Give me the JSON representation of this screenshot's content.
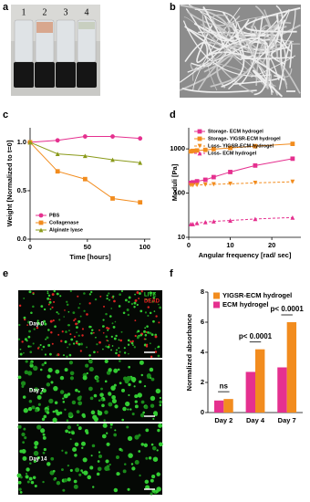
{
  "panel_labels": [
    "a",
    "b",
    "c",
    "d",
    "e",
    "f"
  ],
  "panel_a": {
    "tube_labels": [
      "1",
      "2",
      "3",
      "4"
    ]
  },
  "panel_e": {
    "legend": [
      "LIVE",
      "DEAD"
    ],
    "rows": [
      "Day 0",
      "Day 7",
      "Day 14"
    ]
  },
  "chart_data": [
    {
      "type": "line",
      "x_label": "Time [hours]",
      "y_label": "Weight [Normalized to t=0]",
      "x": [
        0,
        24,
        48,
        72,
        96
      ],
      "xlim": [
        0,
        105
      ],
      "xticks": [
        0,
        50,
        100
      ],
      "ylim": [
        0,
        1.15
      ],
      "yticks": [
        {
          "value": 0,
          "label": "0.0"
        },
        0.5,
        {
          "value": 1,
          "label": "1.0"
        }
      ],
      "legend": "lower left",
      "series": [
        {
          "name": "PBS",
          "color": "#e5308f",
          "marker": "circle",
          "values": [
            1.0,
            1.02,
            1.06,
            1.06,
            1.04
          ]
        },
        {
          "name": "Collagenase",
          "color": "#f28c1e",
          "marker": "square",
          "values": [
            1.0,
            0.7,
            0.62,
            0.42,
            0.38
          ]
        },
        {
          "name": "Alginate lyase",
          "color": "#8a9a1a",
          "marker": "triangle",
          "values": [
            1.0,
            0.88,
            0.86,
            0.82,
            0.79
          ]
        }
      ]
    },
    {
      "type": "line",
      "x_label": "Angular frequency [rad/ sec]",
      "y_label": "Moduli [Pa]",
      "x": [
        0.5,
        1,
        2,
        4,
        6,
        10,
        16,
        25
      ],
      "xlim": [
        0,
        27
      ],
      "xticks": [
        0,
        10,
        20
      ],
      "log_y": true,
      "ylim": [
        10,
        3000
      ],
      "yticks": [
        10,
        100,
        1000
      ],
      "legend": "upper left",
      "series": [
        {
          "name": "Storage- ECM hydrogel",
          "color": "#e5308f",
          "marker": "square",
          "dash": false,
          "values": [
            170,
            175,
            185,
            200,
            230,
            300,
            420,
            600
          ]
        },
        {
          "name": "Storage- YIGSR-ECM hydrogel",
          "color": "#f28c1e",
          "marker": "square",
          "dash": false,
          "values": [
            880,
            900,
            920,
            950,
            990,
            1050,
            1150,
            1300
          ]
        },
        {
          "name": "Loss- YIGSR-ECM hydrogel",
          "color": "#f28c1e",
          "marker": "triangle-down",
          "dash": true,
          "values": [
            150,
            150,
            152,
            155,
            158,
            162,
            170,
            180
          ]
        },
        {
          "name": "Loss- ECM hydrogel",
          "color": "#e5308f",
          "marker": "triangle",
          "dash": true,
          "values": [
            20,
            20,
            21,
            22,
            23,
            24,
            26,
            28
          ]
        }
      ]
    },
    {
      "type": "bar",
      "y_label": "Normalized absorbance",
      "categories": [
        "Day 2",
        "Day 4",
        "Day 7"
      ],
      "ylim": [
        0,
        8
      ],
      "yticks": [
        0,
        2,
        4,
        6,
        8
      ],
      "legend": "upper left",
      "legend_reverse": true,
      "series": [
        {
          "name": "ECM hydrogel",
          "color": "#e5308f",
          "values": [
            0.8,
            2.7,
            3.0
          ]
        },
        {
          "name": "YIGSR-ECM hydrogel",
          "color": "#f28c1e",
          "values": [
            0.9,
            4.2,
            6.0
          ]
        }
      ],
      "annotations": [
        "ns",
        "p< 0.0001",
        "p< 0.0001"
      ]
    }
  ]
}
